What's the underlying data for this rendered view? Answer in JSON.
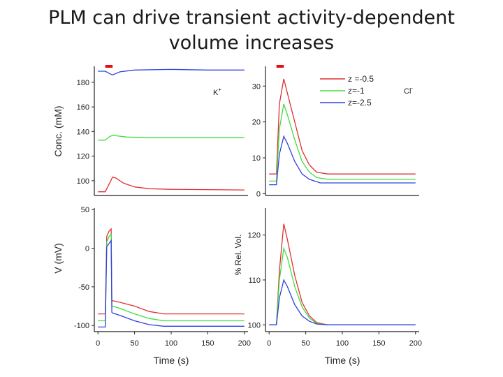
{
  "slide": {
    "title_line1": "PLM can drive transient activity-dependent",
    "title_line2": "volume increases"
  },
  "colors": {
    "red": "#e03030",
    "green": "#40dd40",
    "blue": "#3040e0",
    "stimulus": "#e01010"
  },
  "chart_data": [
    {
      "id": "k",
      "type": "line",
      "ion_label": "K",
      "ion_superscript": "+",
      "xlabel": "",
      "ylabel": "Conc. (mM)",
      "xlim": [
        -5,
        205
      ],
      "ylim": [
        88,
        193
      ],
      "y_ticks": [
        100,
        120,
        140,
        160,
        180
      ],
      "x_ticks": [],
      "stimulus": [
        10,
        20
      ],
      "series": [
        {
          "color": "#3040e0",
          "points": [
            [
              0,
              189
            ],
            [
              10,
              189
            ],
            [
              16,
              187
            ],
            [
              20,
              186
            ],
            [
              30,
              188.5
            ],
            [
              50,
              190
            ],
            [
              100,
              190.5
            ],
            [
              150,
              190
            ],
            [
              200,
              190
            ]
          ]
        },
        {
          "color": "#40dd40",
          "points": [
            [
              0,
              133
            ],
            [
              10,
              133
            ],
            [
              15,
              135.5
            ],
            [
              20,
              137
            ],
            [
              25,
              136.5
            ],
            [
              40,
              135.5
            ],
            [
              70,
              135
            ],
            [
              200,
              135
            ]
          ]
        },
        {
          "color": "#e03030",
          "points": [
            [
              0,
              91
            ],
            [
              10,
              91
            ],
            [
              15,
              97
            ],
            [
              20,
              103
            ],
            [
              25,
              102
            ],
            [
              35,
              98
            ],
            [
              50,
              95
            ],
            [
              70,
              93.5
            ],
            [
              100,
              93
            ],
            [
              200,
              92.5
            ]
          ]
        }
      ]
    },
    {
      "id": "cl",
      "type": "line",
      "ion_label": "Cl",
      "ion_superscript": "-",
      "xlabel": "",
      "ylabel": "",
      "xlim": [
        -5,
        205
      ],
      "ylim": [
        -0.5,
        35.5
      ],
      "y_ticks": [
        0,
        10,
        20,
        30
      ],
      "x_ticks": [],
      "stimulus": [
        10,
        20
      ],
      "legend": [
        "z =-0.5",
        "z=-1",
        "z=-2.5"
      ],
      "series": [
        {
          "name": "z =-0.5",
          "color": "#e03030",
          "points": [
            [
              0,
              5.5
            ],
            [
              10,
              5.5
            ],
            [
              14,
              25
            ],
            [
              20,
              32
            ],
            [
              25,
              28
            ],
            [
              35,
              20
            ],
            [
              45,
              12
            ],
            [
              55,
              8
            ],
            [
              65,
              6
            ],
            [
              80,
              5.5
            ],
            [
              200,
              5.5
            ]
          ]
        },
        {
          "name": "z=-1",
          "color": "#40dd40",
          "points": [
            [
              0,
              3.5
            ],
            [
              10,
              3.5
            ],
            [
              14,
              18
            ],
            [
              20,
              25
            ],
            [
              25,
              22
            ],
            [
              35,
              15
            ],
            [
              45,
              9
            ],
            [
              55,
              6
            ],
            [
              65,
              4.5
            ],
            [
              80,
              4
            ],
            [
              200,
              4
            ]
          ]
        },
        {
          "name": "z=-2.5",
          "color": "#3040e0",
          "points": [
            [
              0,
              2.5
            ],
            [
              10,
              2.5
            ],
            [
              14,
              11
            ],
            [
              20,
              16
            ],
            [
              25,
              14
            ],
            [
              35,
              9
            ],
            [
              45,
              5.5
            ],
            [
              55,
              4
            ],
            [
              70,
              3
            ],
            [
              200,
              3
            ]
          ]
        }
      ]
    },
    {
      "id": "v",
      "type": "line",
      "xlabel": "Time (s)",
      "ylabel": "V (mV)",
      "xlim": [
        -5,
        205
      ],
      "ylim": [
        -108,
        52
      ],
      "y_ticks": [
        -100,
        -50,
        0,
        50
      ],
      "x_ticks": [
        0,
        50,
        100,
        150,
        200
      ],
      "series": [
        {
          "color": "#e03030",
          "points": [
            [
              0,
              -85
            ],
            [
              10,
              -85
            ],
            [
              12,
              15
            ],
            [
              15,
              22
            ],
            [
              18,
              25
            ],
            [
              19,
              -68
            ],
            [
              20,
              -68
            ],
            [
              30,
              -70
            ],
            [
              50,
              -75
            ],
            [
              70,
              -82
            ],
            [
              90,
              -85
            ],
            [
              200,
              -85
            ]
          ]
        },
        {
          "color": "#40dd40",
          "points": [
            [
              0,
              -94
            ],
            [
              10,
              -94
            ],
            [
              12,
              8
            ],
            [
              15,
              15
            ],
            [
              18,
              18
            ],
            [
              19,
              -75
            ],
            [
              20,
              -75
            ],
            [
              30,
              -78
            ],
            [
              50,
              -85
            ],
            [
              70,
              -91
            ],
            [
              90,
              -94
            ],
            [
              200,
              -94
            ]
          ]
        },
        {
          "color": "#3040e0",
          "points": [
            [
              0,
              -102
            ],
            [
              10,
              -102
            ],
            [
              12,
              2
            ],
            [
              15,
              6
            ],
            [
              18,
              10
            ],
            [
              19,
              -83
            ],
            [
              20,
              -84
            ],
            [
              30,
              -87
            ],
            [
              50,
              -94
            ],
            [
              70,
              -99
            ],
            [
              90,
              -101
            ],
            [
              200,
              -101
            ]
          ]
        }
      ]
    },
    {
      "id": "vol",
      "type": "line",
      "xlabel": "Time (s)",
      "ylabel": "% Rel. Vol.",
      "xlim": [
        -5,
        205
      ],
      "ylim": [
        98.5,
        126
      ],
      "y_ticks": [
        100,
        110,
        120
      ],
      "x_ticks": [
        0,
        50,
        100,
        150,
        200
      ],
      "series": [
        {
          "color": "#e03030",
          "points": [
            [
              0,
              100
            ],
            [
              10,
              100
            ],
            [
              14,
              112
            ],
            [
              20,
              122.5
            ],
            [
              25,
              119
            ],
            [
              35,
              111
            ],
            [
              45,
              105
            ],
            [
              55,
              102
            ],
            [
              65,
              100.5
            ],
            [
              80,
              100
            ],
            [
              200,
              100
            ]
          ]
        },
        {
          "color": "#40dd40",
          "points": [
            [
              0,
              100
            ],
            [
              10,
              100
            ],
            [
              14,
              110
            ],
            [
              20,
              117
            ],
            [
              25,
              115
            ],
            [
              35,
              108.5
            ],
            [
              45,
              104
            ],
            [
              55,
              101.5
            ],
            [
              65,
              100.3
            ],
            [
              80,
              100
            ],
            [
              200,
              100
            ]
          ]
        },
        {
          "color": "#3040e0",
          "points": [
            [
              0,
              100
            ],
            [
              10,
              100
            ],
            [
              14,
              106
            ],
            [
              20,
              110
            ],
            [
              25,
              108.5
            ],
            [
              35,
              104.5
            ],
            [
              45,
              102
            ],
            [
              55,
              100.8
            ],
            [
              65,
              100.2
            ],
            [
              80,
              100
            ],
            [
              200,
              100
            ]
          ]
        }
      ]
    }
  ]
}
